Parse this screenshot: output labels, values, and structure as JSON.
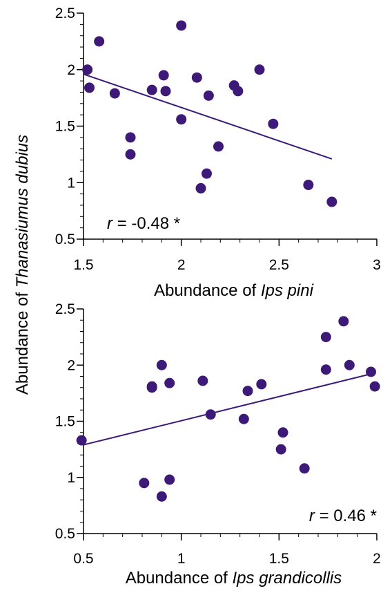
{
  "shared_ylabel": {
    "prefix": "Abundance of ",
    "species": "Thanasiumus dubius"
  },
  "colors": {
    "marker": "#3d1a78",
    "line": "#3d1a78",
    "axis": "#000000"
  },
  "chart_data": [
    {
      "type": "scatter",
      "xlabel": {
        "prefix": "Abundance of ",
        "species": "Ips pini"
      },
      "ylabel": "",
      "xlim": [
        1.5,
        3
      ],
      "ylim": [
        0.5,
        2.5
      ],
      "xticks": [
        1.5,
        2,
        2.5,
        3
      ],
      "xtick_labels": [
        "1.5",
        "2",
        "2.5",
        "3"
      ],
      "yticks": [
        0.5,
        1,
        1.5,
        2,
        2.5
      ],
      "ytick_labels": [
        "0.5",
        "1",
        "1.5",
        "2",
        "2.5"
      ],
      "x_minor_step": 0.1,
      "y_minor_step": 0.1,
      "points": [
        {
          "x": 1.52,
          "y": 2.0
        },
        {
          "x": 1.53,
          "y": 1.84
        },
        {
          "x": 1.58,
          "y": 2.25
        },
        {
          "x": 1.66,
          "y": 1.79
        },
        {
          "x": 1.74,
          "y": 1.4
        },
        {
          "x": 1.74,
          "y": 1.25
        },
        {
          "x": 1.85,
          "y": 1.82
        },
        {
          "x": 1.91,
          "y": 1.95
        },
        {
          "x": 1.92,
          "y": 1.81
        },
        {
          "x": 2.0,
          "y": 2.39
        },
        {
          "x": 2.0,
          "y": 1.56
        },
        {
          "x": 2.08,
          "y": 1.93
        },
        {
          "x": 2.1,
          "y": 0.95
        },
        {
          "x": 2.13,
          "y": 1.08
        },
        {
          "x": 2.14,
          "y": 1.77
        },
        {
          "x": 2.19,
          "y": 1.32
        },
        {
          "x": 2.27,
          "y": 1.86
        },
        {
          "x": 2.29,
          "y": 1.81
        },
        {
          "x": 2.4,
          "y": 2.0
        },
        {
          "x": 2.47,
          "y": 1.52
        },
        {
          "x": 2.65,
          "y": 0.98
        },
        {
          "x": 2.77,
          "y": 0.83
        }
      ],
      "trend_line": {
        "x": [
          1.5,
          2.77
        ],
        "y": [
          1.96,
          1.21
        ]
      },
      "annotation": {
        "var": "r",
        "text": " = -0.48 *",
        "position": "bottom-left"
      }
    },
    {
      "type": "scatter",
      "xlabel": {
        "prefix": "Abundance of ",
        "species": "Ips grandicollis"
      },
      "ylabel": "",
      "xlim": [
        0.5,
        2
      ],
      "ylim": [
        0.5,
        2.5
      ],
      "xticks": [
        0.5,
        1,
        1.5,
        2
      ],
      "xtick_labels": [
        "0.5",
        "1",
        "1.5",
        "2"
      ],
      "yticks": [
        0.5,
        1,
        1.5,
        2,
        2.5
      ],
      "ytick_labels": [
        "0.5",
        "1",
        "1.5",
        "2",
        "2.5"
      ],
      "x_minor_step": 0.1,
      "y_minor_step": 0.1,
      "points": [
        {
          "x": 0.49,
          "y": 1.33
        },
        {
          "x": 0.81,
          "y": 0.95
        },
        {
          "x": 0.85,
          "y": 1.8
        },
        {
          "x": 0.85,
          "y": 1.81
        },
        {
          "x": 0.9,
          "y": 2.0
        },
        {
          "x": 0.9,
          "y": 0.83
        },
        {
          "x": 0.94,
          "y": 1.84
        },
        {
          "x": 0.94,
          "y": 0.98
        },
        {
          "x": 1.11,
          "y": 1.86
        },
        {
          "x": 1.15,
          "y": 1.56
        },
        {
          "x": 1.32,
          "y": 1.52
        },
        {
          "x": 1.34,
          "y": 1.77
        },
        {
          "x": 1.41,
          "y": 1.83
        },
        {
          "x": 1.51,
          "y": 1.25
        },
        {
          "x": 1.52,
          "y": 1.4
        },
        {
          "x": 1.63,
          "y": 1.08
        },
        {
          "x": 1.74,
          "y": 2.25
        },
        {
          "x": 1.74,
          "y": 1.96
        },
        {
          "x": 1.83,
          "y": 2.39
        },
        {
          "x": 1.86,
          "y": 2.0
        },
        {
          "x": 1.97,
          "y": 1.94
        },
        {
          "x": 1.99,
          "y": 1.81
        }
      ],
      "trend_line": {
        "x": [
          0.5,
          1.99
        ],
        "y": [
          1.29,
          1.93
        ]
      },
      "annotation": {
        "var": "r",
        "text": " = 0.46 *",
        "position": "bottom-right"
      }
    }
  ]
}
